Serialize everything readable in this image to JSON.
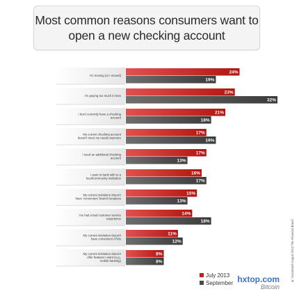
{
  "title": "Most common reasons consumers want to open a new checking account",
  "chart_data": {
    "type": "bar",
    "orientation": "horizontal",
    "title": "Most common reasons consumers want to open a new checking account",
    "categories": [
      "I'm moving (or I moved)",
      "I'm paying too much in fees",
      "I don't currently have a checking account",
      "My current checking account doesn't meet my needs anymore",
      "I need an additional checking account",
      "I want to bank with to a local/community institution",
      "My current institution doesn't have 'convenient' branch locations",
      "I've had a bad customer service experience",
      "My current institution doesn't have convenient ATMs",
      "My current institution doesn't offer features I want (e.g., mobile banking)"
    ],
    "series": [
      {
        "name": "July 2013",
        "values": [
          24,
          23,
          21,
          17,
          17,
          16,
          15,
          14,
          11,
          8
        ],
        "color": "#c8201e"
      },
      {
        "name": "September 2013",
        "values": [
          19,
          32,
          18,
          19,
          13,
          17,
          13,
          18,
          12,
          8
        ],
        "color": "#4a4a4a"
      }
    ],
    "value_labels": {
      "series0": [
        "24%",
        "23%",
        "21%",
        "17%",
        "17%",
        "16%",
        "15%",
        "14%",
        "11%",
        "8%"
      ],
      "series1": [
        "19%",
        "32%",
        "18%",
        "19%",
        "13%",
        "17%",
        "13%",
        "18%",
        "12%",
        "8%"
      ]
    },
    "xlim": [
      0,
      32
    ],
    "grid": false,
    "legend_position": "bottom-right"
  },
  "legend": {
    "items": [
      "July 2013",
      "September"
    ]
  },
  "watermark": {
    "line1": "hxtop.com",
    "line2": "Bitcoin"
  },
  "credit": "ar: Novantas® August 2013 The Financial Brand"
}
